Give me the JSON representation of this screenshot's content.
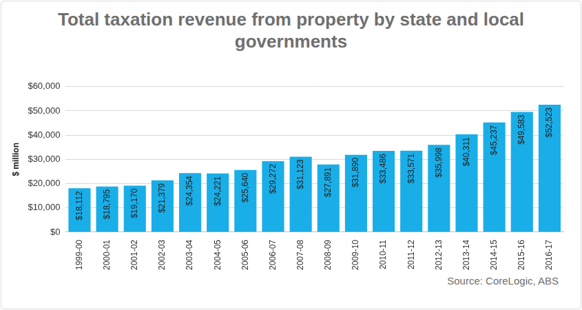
{
  "chart_data": {
    "type": "bar",
    "title": "Total taxation revenue from property by state and local governments",
    "y_label": "$ million",
    "source": "Source: CoreLogic, ABS",
    "categories": [
      "1999-00",
      "2000-01",
      "2001-02",
      "2002-03",
      "2003-04",
      "2004-05",
      "2005-06",
      "2006-07",
      "2007-08",
      "2008-09",
      "2009-10",
      "2010-11",
      "2011-12",
      "2012-13",
      "2013-14",
      "2014-15",
      "2015-16",
      "2016-17"
    ],
    "values": [
      18112,
      18795,
      19170,
      21379,
      24354,
      24221,
      25640,
      29272,
      31123,
      27891,
      31890,
      33486,
      33571,
      35998,
      40311,
      45237,
      49583,
      52523
    ],
    "value_labels": [
      "$18,112",
      "$18,795",
      "$19,170",
      "$21,379",
      "$24,354",
      "$24,221",
      "$25,640",
      "$29,272",
      "$31,123",
      "$27,891",
      "$31,890",
      "$33,486",
      "$33,571",
      "$35,998",
      "$40,311",
      "$45,237",
      "$49,583",
      "$52,523"
    ],
    "color": "#19aee8",
    "ylim": [
      0,
      60000
    ],
    "yticks": [
      {
        "value": 0,
        "label": "$0"
      },
      {
        "value": 10000,
        "label": "$10,000"
      },
      {
        "value": 20000,
        "label": "$20,000"
      },
      {
        "value": 30000,
        "label": "$30,000"
      },
      {
        "value": 40000,
        "label": "$40,000"
      },
      {
        "value": 50000,
        "label": "$50,000"
      },
      {
        "value": 60000,
        "label": "$60,000"
      }
    ],
    "grid": true,
    "data_labels": true
  }
}
